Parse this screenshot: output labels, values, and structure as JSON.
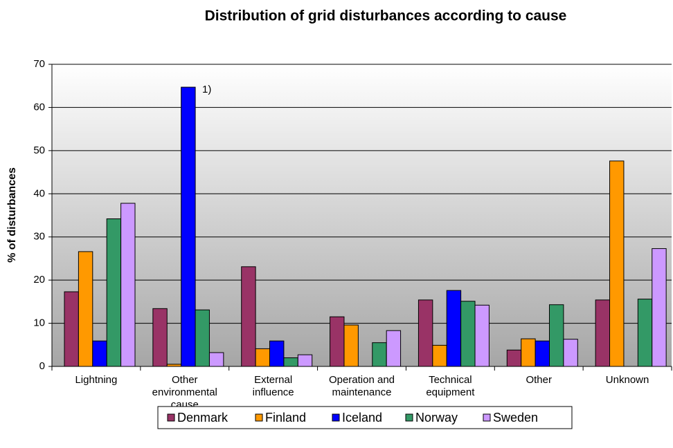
{
  "chart_data": {
    "type": "bar",
    "title": "Distribution of grid disturbances according to cause",
    "y_label": "% of disturbances",
    "categories": [
      "Lightning",
      "Other environmental cause",
      "External influence",
      "Operation and maintenance",
      "Technical equipment",
      "Other",
      "Unknown"
    ],
    "series": [
      {
        "name": "Denmark",
        "color": "#993366",
        "values": [
          17.3,
          13.4,
          23.1,
          11.5,
          15.4,
          3.8,
          15.4
        ]
      },
      {
        "name": "Finland",
        "color": "#FF9900",
        "values": [
          26.6,
          0.5,
          4.1,
          9.6,
          4.9,
          6.4,
          47.6
        ]
      },
      {
        "name": "Iceland",
        "color": "#0000FF",
        "values": [
          5.9,
          64.7,
          5.9,
          null,
          17.6,
          5.9,
          null
        ]
      },
      {
        "name": "Norway",
        "color": "#339966",
        "values": [
          34.2,
          13.1,
          2.0,
          5.5,
          15.1,
          14.3,
          15.6
        ]
      },
      {
        "name": "Sweden",
        "color": "#CC99FF",
        "values": [
          37.8,
          3.2,
          2.7,
          8.3,
          14.2,
          6.3,
          27.3
        ]
      }
    ],
    "annotations": [
      {
        "text": "1)"
      }
    ],
    "ylim": [
      0,
      70
    ],
    "yticks": [
      0,
      10,
      20,
      30,
      40,
      50,
      60,
      70
    ],
    "grid": true,
    "legend": "bottom"
  }
}
